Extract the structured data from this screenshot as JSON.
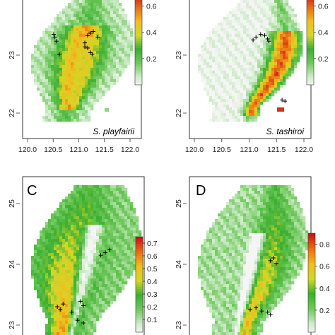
{
  "chart_data": [
    {
      "type": "heatmap",
      "panel": "",
      "species": "S. playfairii",
      "x_ticks": [
        "120.0",
        "120.5",
        "121.0",
        "121.5",
        "122.0"
      ],
      "y_ticks": [
        "23",
        "22"
      ],
      "legend_ticks": [
        "0.6",
        "0.4",
        "0.2"
      ],
      "legend_range": [
        0,
        0.7
      ],
      "occurrence_points": [
        [
          120.5,
          23.2
        ],
        [
          120.52,
          23.15
        ],
        [
          120.55,
          23.08
        ],
        [
          120.6,
          22.85
        ],
        [
          121.1,
          23.18
        ],
        [
          121.15,
          23.22
        ],
        [
          121.2,
          23.25
        ],
        [
          121.28,
          23.15
        ],
        [
          121.05,
          23.05
        ],
        [
          121.1,
          22.96
        ],
        [
          121.05,
          22.98
        ],
        [
          121.15,
          22.88
        ],
        [
          121.18,
          22.85
        ]
      ]
    },
    {
      "type": "heatmap",
      "panel": "",
      "species": "S. tashiroi",
      "x_ticks": [
        "120.0",
        "120.5",
        "121.0",
        "121.5",
        "122.0"
      ],
      "y_ticks": [
        "23",
        "22"
      ],
      "legend_ticks": [
        "0.6",
        "0.4",
        "0.2"
      ],
      "legend_range": [
        0,
        0.7
      ],
      "occurrence_points": [
        [
          121.05,
          23.1
        ],
        [
          121.1,
          23.15
        ],
        [
          121.18,
          23.2
        ],
        [
          121.25,
          23.18
        ],
        [
          121.3,
          23.12
        ],
        [
          121.32,
          23.08
        ],
        [
          121.55,
          22.05
        ],
        [
          121.6,
          22.03
        ]
      ]
    },
    {
      "type": "heatmap",
      "panel": "C",
      "species": "",
      "y_ticks": [
        "25",
        "24",
        "23"
      ],
      "legend_ticks": [
        "0.7",
        "0.6",
        "0.5",
        "0.4",
        "0.3",
        "0.2",
        "0.1"
      ],
      "legend_range": [
        0,
        0.75
      ],
      "occurrence_points": [
        [
          121.3,
          24.05
        ],
        [
          121.38,
          24.1
        ],
        [
          121.45,
          24.15
        ],
        [
          120.55,
          23.1
        ],
        [
          120.6,
          23.05
        ],
        [
          120.65,
          23.15
        ],
        [
          120.8,
          23.0
        ],
        [
          120.95,
          23.2
        ],
        [
          121.0,
          23.12
        ],
        [
          120.9,
          22.85
        ],
        [
          121.0,
          22.8
        ]
      ]
    },
    {
      "type": "heatmap",
      "panel": "D",
      "species": "",
      "y_ticks": [
        "25",
        "24",
        "23"
      ],
      "legend_ticks": [
        "0.8",
        "0.6",
        "0.4",
        "0.2"
      ],
      "legend_range": [
        0,
        0.9
      ],
      "occurrence_points": [
        [
          121.35,
          23.95
        ],
        [
          121.4,
          24.0
        ],
        [
          121.45,
          23.9
        ],
        [
          121.0,
          23.05
        ],
        [
          121.1,
          23.08
        ],
        [
          121.2,
          23.02
        ],
        [
          121.3,
          23.0
        ],
        [
          121.35,
          22.95
        ]
      ]
    }
  ]
}
